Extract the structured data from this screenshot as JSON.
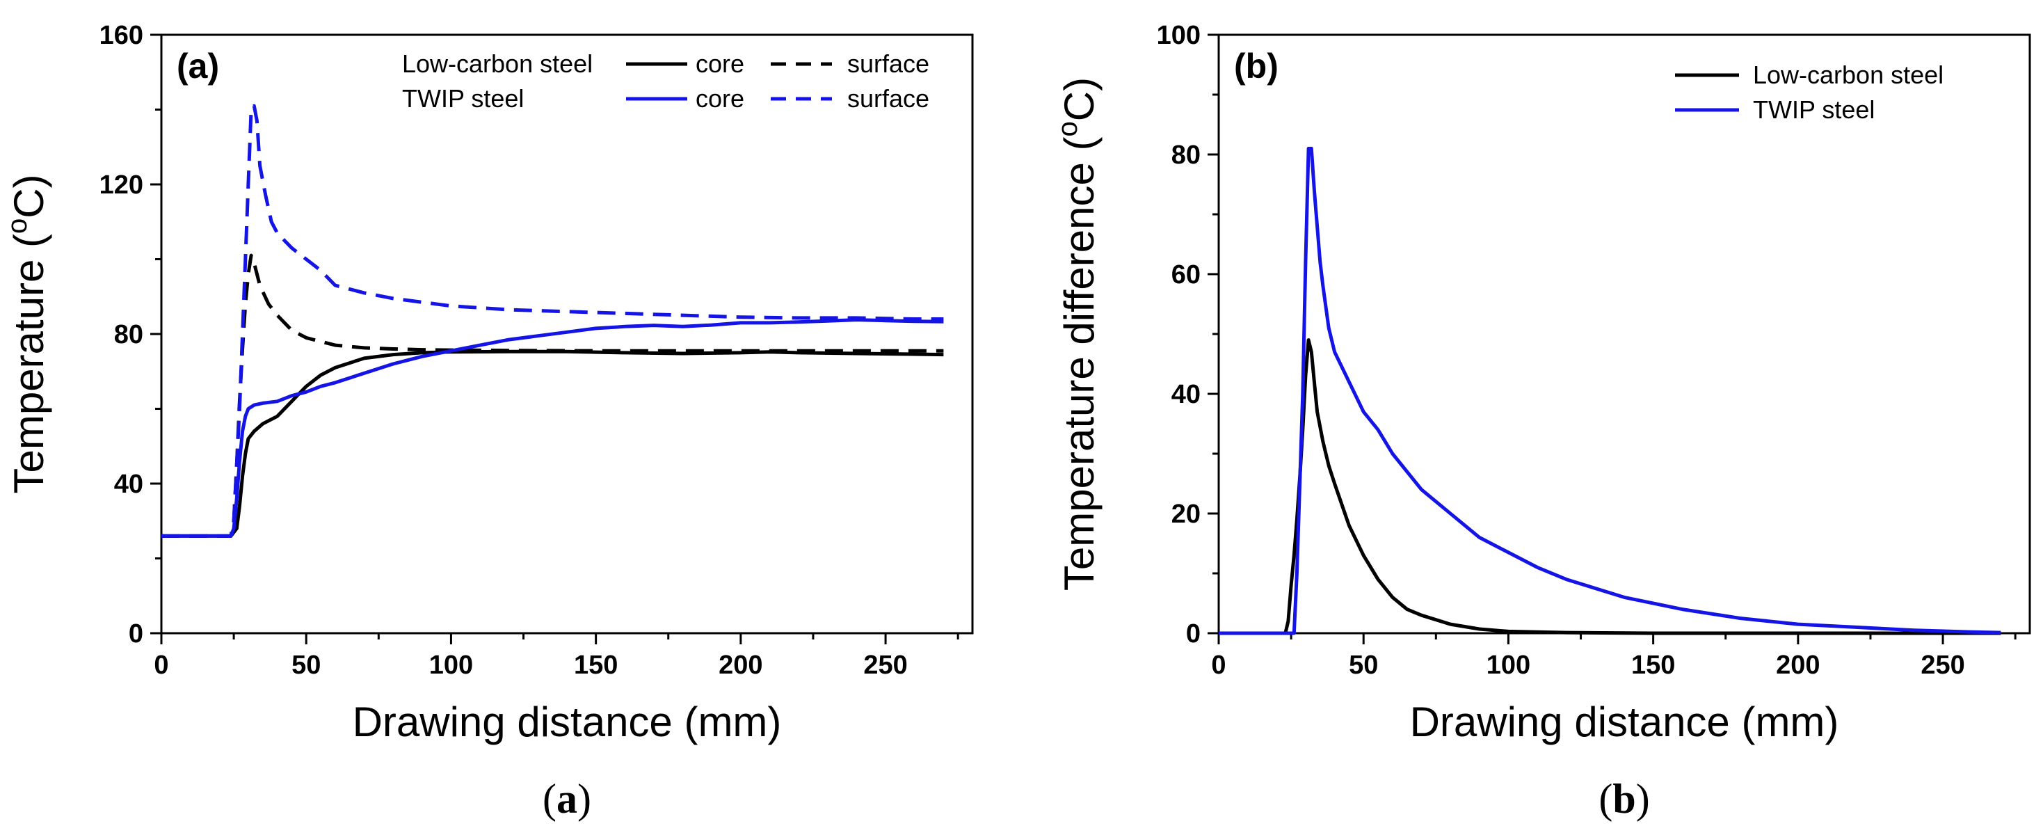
{
  "chart_data": [
    {
      "type": "line",
      "panel_label": "(a)",
      "caption_parts": [
        "(",
        "a",
        ")"
      ],
      "title": "",
      "xlabel": "Drawing distance (mm)",
      "ylabel": "Temperature (",
      "ylabel_sup": "o",
      "ylabel_unit": "C)",
      "xlim": [
        0,
        280
      ],
      "ylim": [
        0,
        160
      ],
      "xticks": [
        0,
        50,
        100,
        150,
        200,
        250
      ],
      "yticks": [
        0,
        40,
        80,
        120,
        160
      ],
      "grid": false,
      "legend": {
        "placement": "top-right",
        "rows": [
          {
            "group": "Low-carbon steel",
            "entries": [
              {
                "label": "core",
                "series": 0
              },
              {
                "label": "surface",
                "series": 1
              }
            ]
          },
          {
            "group": "TWIP steel",
            "entries": [
              {
                "label": "core",
                "series": 2
              },
              {
                "label": "surface",
                "series": 3
              }
            ]
          }
        ]
      },
      "series": [
        {
          "name": "Low-carbon steel core",
          "color": "#000000",
          "dash": "solid",
          "x": [
            0,
            20,
            24,
            26,
            27,
            28,
            29,
            30,
            32,
            35,
            40,
            45,
            50,
            55,
            60,
            70,
            80,
            90,
            100,
            120,
            140,
            160,
            180,
            200,
            210,
            220,
            240,
            260,
            270
          ],
          "y": [
            26,
            26,
            26,
            28,
            34,
            42,
            48,
            52,
            54,
            56,
            58,
            62,
            66,
            69,
            71,
            73.5,
            74.5,
            75,
            75.2,
            75.3,
            75.3,
            75,
            74.8,
            75,
            75.2,
            75,
            74.8,
            74.6,
            74.5
          ]
        },
        {
          "name": "Low-carbon steel surface",
          "color": "#000000",
          "dash": "dashed",
          "x": [
            0,
            20,
            24,
            25,
            26,
            27,
            28,
            29,
            30,
            31,
            32,
            34,
            37,
            40,
            45,
            50,
            55,
            60,
            70,
            80,
            90,
            100,
            120,
            150,
            200,
            250,
            270
          ],
          "y": [
            26,
            26,
            26,
            30,
            45,
            62,
            76,
            88,
            96,
            101,
            99,
            93,
            88,
            85,
            81,
            79,
            78,
            77,
            76.3,
            76,
            75.8,
            75.7,
            75.6,
            75.5,
            75.5,
            75.5,
            75.5
          ]
        },
        {
          "name": "TWIP steel core",
          "color": "#1414e6",
          "dash": "solid",
          "x": [
            0,
            20,
            24,
            25,
            26,
            27,
            28,
            29,
            30,
            32,
            35,
            40,
            45,
            50,
            55,
            60,
            70,
            80,
            90,
            100,
            110,
            120,
            130,
            140,
            150,
            160,
            170,
            180,
            190,
            200,
            210,
            220,
            230,
            240,
            250,
            260,
            270
          ],
          "y": [
            26,
            26,
            26,
            28,
            36,
            46,
            54,
            58,
            60,
            61,
            61.5,
            62,
            63.5,
            64.5,
            66,
            67,
            69.5,
            72,
            74,
            75.5,
            77,
            78.5,
            79.5,
            80.5,
            81.5,
            82,
            82.3,
            82,
            82.4,
            83,
            83,
            83.2,
            83.5,
            83.8,
            83.6,
            83.4,
            83.3
          ]
        },
        {
          "name": "TWIP steel surface",
          "color": "#1414e6",
          "dash": "dashed",
          "x": [
            0,
            20,
            24,
            25,
            26,
            27,
            28,
            29,
            30,
            31,
            32,
            33,
            34,
            36,
            38,
            40,
            45,
            50,
            55,
            60,
            70,
            80,
            90,
            100,
            120,
            140,
            160,
            180,
            200,
            220,
            240,
            260,
            270
          ],
          "y": [
            26,
            26,
            26,
            30,
            45,
            60,
            80,
            100,
            120,
            140,
            141,
            137,
            125,
            117,
            110,
            107,
            103,
            100,
            97,
            93,
            91,
            89.5,
            88.5,
            87.5,
            86.5,
            86,
            85.5,
            85,
            84.5,
            84.3,
            84.3,
            84,
            84
          ]
        }
      ]
    },
    {
      "type": "line",
      "panel_label": "(b)",
      "caption_parts": [
        "(",
        "b",
        ")"
      ],
      "title": "",
      "xlabel": "Drawing distance (mm)",
      "ylabel": "Temperature difference (",
      "ylabel_sup": "o",
      "ylabel_unit": "C)",
      "xlim": [
        0,
        280
      ],
      "ylim": [
        0,
        100
      ],
      "xticks": [
        0,
        50,
        100,
        150,
        200,
        250
      ],
      "yticks": [
        0,
        20,
        40,
        60,
        80,
        100
      ],
      "grid": false,
      "legend": {
        "placement": "top-right",
        "rows": [
          {
            "group": "",
            "entries": [
              {
                "label": "Low-carbon steel",
                "series": 0
              }
            ]
          },
          {
            "group": "",
            "entries": [
              {
                "label": "TWIP steel",
                "series": 1
              }
            ]
          }
        ]
      },
      "series": [
        {
          "name": "Low-carbon steel",
          "color": "#000000",
          "dash": "solid",
          "x": [
            0,
            23,
            24,
            25,
            26,
            27,
            28,
            29,
            30,
            31,
            32,
            33,
            34,
            36,
            38,
            40,
            45,
            50,
            55,
            60,
            65,
            70,
            80,
            90,
            100,
            120,
            150,
            200,
            250,
            270
          ],
          "y": [
            0,
            0,
            2,
            8,
            13,
            19,
            26,
            34,
            43,
            49,
            47,
            42,
            37,
            32,
            28,
            25,
            18,
            13,
            9,
            6,
            4,
            3,
            1.5,
            0.7,
            0.3,
            0.1,
            0,
            0,
            0,
            0
          ]
        },
        {
          "name": "TWIP steel",
          "color": "#1414e6",
          "dash": "solid",
          "x": [
            0,
            26,
            27,
            28,
            29,
            30,
            31,
            32,
            33,
            34,
            35,
            36,
            38,
            40,
            45,
            50,
            55,
            60,
            65,
            70,
            75,
            80,
            90,
            100,
            110,
            120,
            140,
            160,
            180,
            200,
            220,
            240,
            260,
            270
          ],
          "y": [
            0,
            0,
            10,
            25,
            40,
            62,
            81,
            81,
            74,
            68,
            62,
            58,
            51,
            47,
            42,
            37,
            34,
            30,
            27,
            24,
            22,
            20,
            16,
            13.5,
            11,
            9,
            6,
            4,
            2.5,
            1.5,
            1,
            0.5,
            0.2,
            0.1
          ]
        }
      ]
    }
  ]
}
